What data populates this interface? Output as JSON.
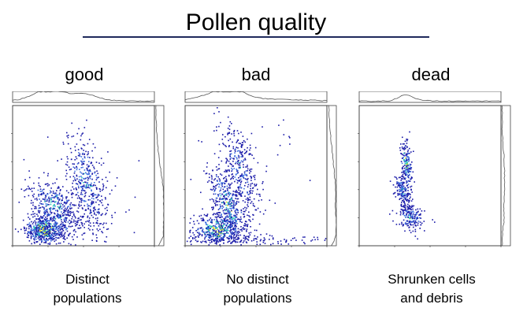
{
  "page": {
    "title": "Pollen quality"
  },
  "panels": [
    {
      "label": "good",
      "caption_line1": "Distinct",
      "caption_line2": "populations"
    },
    {
      "label": "bad",
      "caption_line1": "No distinct",
      "caption_line2": "populations"
    },
    {
      "label": "dead",
      "caption_line1": "Shrunken cells",
      "caption_line2": "and debris"
    }
  ],
  "colors": {
    "title_rule": "#1f2a5c",
    "dots_low": "#1a1aa8",
    "dots_mid": "#3c6fe0",
    "dots_high": "#27c7b8",
    "dots_peak": "#e8e020"
  }
}
